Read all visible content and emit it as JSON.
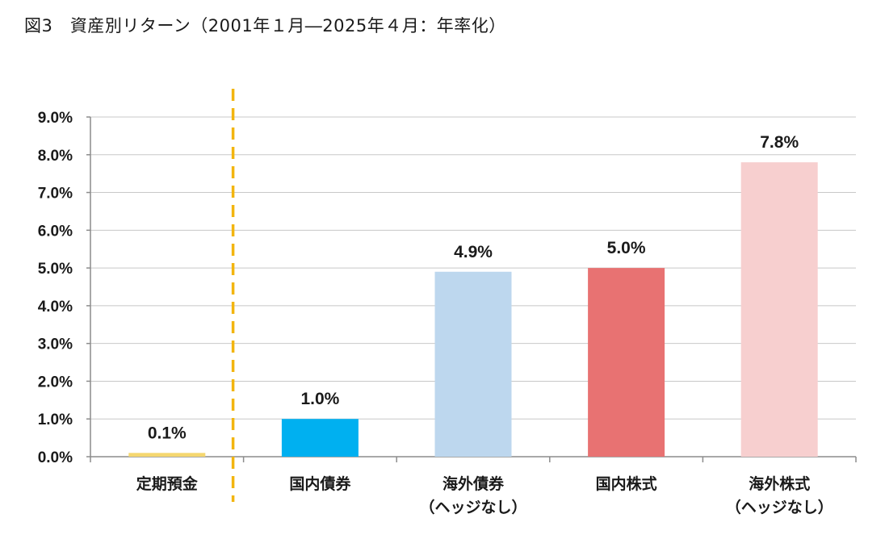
{
  "title": "図3　資産別リターン（2001年１月―2025年４月：年率化）",
  "chart_data": {
    "type": "bar",
    "categories": [
      [
        "定期預金"
      ],
      [
        "国内債券"
      ],
      [
        "海外債券",
        "（ヘッジなし）"
      ],
      [
        "国内株式"
      ],
      [
        "海外株式",
        "（ヘッジなし）"
      ]
    ],
    "values": [
      0.1,
      1.0,
      4.9,
      5.0,
      7.8
    ],
    "value_labels": [
      "0.1%",
      "1.0%",
      "4.9%",
      "5.0%",
      "7.8%"
    ],
    "colors": [
      "#f5d770",
      "#00b0f0",
      "#bdd7ee",
      "#e87272",
      "#f7cfcf"
    ],
    "ylim": [
      0,
      9
    ],
    "yticks": [
      0,
      1,
      2,
      3,
      4,
      5,
      6,
      7,
      8,
      9
    ],
    "ytick_labels": [
      "0.0%",
      "1.0%",
      "2.0%",
      "3.0%",
      "4.0%",
      "5.0%",
      "6.0%",
      "7.0%",
      "8.0%",
      "9.0%"
    ],
    "grid": true,
    "divider_after_category": 0,
    "divider_color": "#f2b50f",
    "xlabel": "",
    "ylabel": ""
  }
}
